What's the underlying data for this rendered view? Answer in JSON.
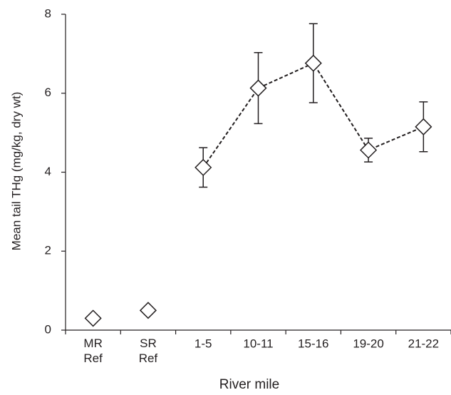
{
  "chart_data": {
    "type": "line",
    "xlabel": "River mile",
    "ylabel": "Mean tail THg (mg/kg, dry wt)",
    "categories": [
      "MR Ref",
      "SR Ref",
      "1-5",
      "10-11",
      "15-16",
      "19-20",
      "21-22"
    ],
    "series": [
      {
        "color": "#231f20",
        "line": "none",
        "values": [
          0.3,
          0.5,
          null,
          null,
          null,
          null,
          null
        ]
      },
      {
        "color": "#231f20",
        "line": "dashed",
        "values": [
          null,
          null,
          4.12,
          6.13,
          6.76,
          4.56,
          5.15
        ],
        "errors": [
          null,
          null,
          0.5,
          0.9,
          1.0,
          0.3,
          0.63
        ]
      }
    ],
    "ylim": [
      0,
      8
    ],
    "yticks": [
      0,
      2,
      4,
      6,
      8
    ],
    "grid": false
  }
}
